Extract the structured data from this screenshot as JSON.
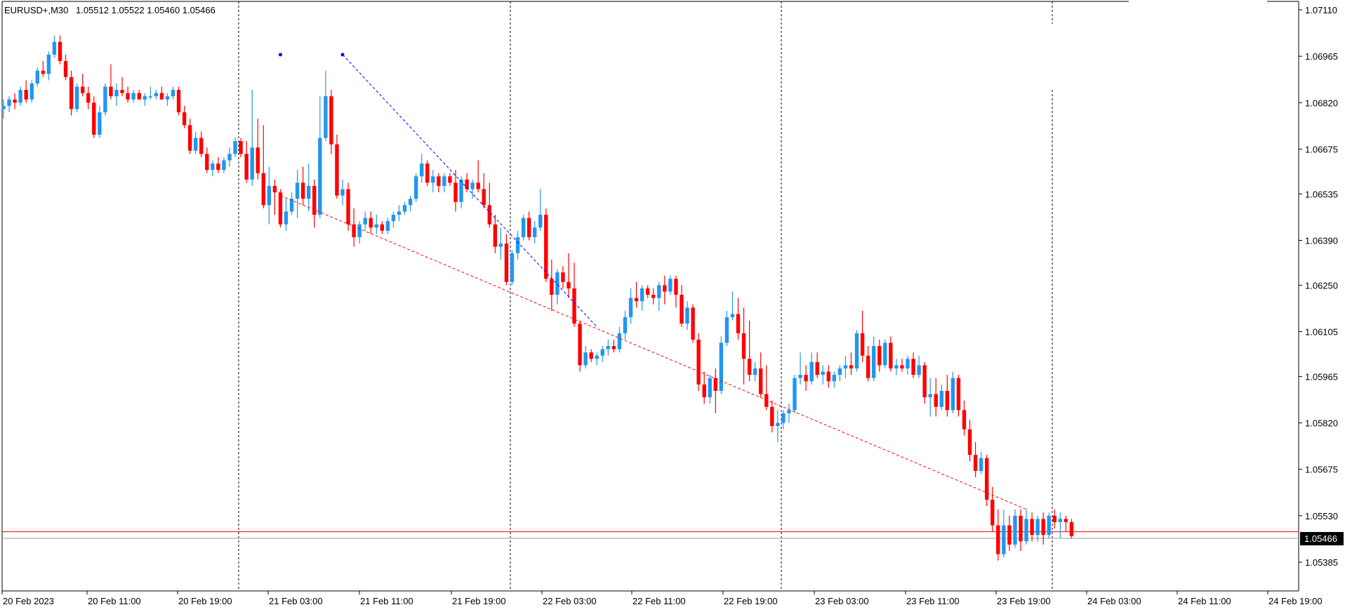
{
  "header": {
    "symbol": "EURUSD+,M30",
    "ohlc": "1.05512 1.05522 1.05460 1.05466"
  },
  "chart_data": {
    "type": "candlestick",
    "symbol": "EURUSD+",
    "timeframe": "M30",
    "ylim": [
      1.0533,
      1.0714
    ],
    "y_ticks": [
      "1.07110",
      "1.06965",
      "1.06820",
      "1.06675",
      "1.06535",
      "1.06390",
      "1.06250",
      "1.06105",
      "1.05965",
      "1.05820",
      "1.05675",
      "1.05530",
      "1.05385"
    ],
    "x_ticks": [
      "20 Feb 2023",
      "20 Feb 11:00",
      "20 Feb 19:00",
      "21 Feb 03:00",
      "21 Feb 11:00",
      "21 Feb 19:00",
      "22 Feb 03:00",
      "22 Feb 11:00",
      "22 Feb 19:00",
      "23 Feb 03:00",
      "23 Feb 11:00",
      "23 Feb 19:00",
      "24 Feb 03:00",
      "24 Feb 11:00",
      "24 Feb 19:00"
    ],
    "current_price": "1.05466",
    "bid_line": 1.05466,
    "ask_line": 1.0548,
    "day_separators": [
      "21 Feb 2023",
      "22 Feb 2023",
      "23 Feb 2023",
      "24 Feb 2023"
    ],
    "bull_color": "#2196F3",
    "bear_color": "#FF0000",
    "trendlines": [
      {
        "color": "#0000FF",
        "from": [
          1.0697
        ],
        "to": [
          1.0612
        ]
      },
      {
        "color": "#FF0000",
        "from": [
          1.0653
        ],
        "to": [
          1.0555
        ]
      }
    ],
    "candles": [
      [
        1.068,
        1.0683,
        1.0677,
        1.0681
      ],
      [
        1.0681,
        1.0684,
        1.0679,
        1.0683
      ],
      [
        1.0683,
        1.0685,
        1.068,
        1.0682
      ],
      [
        1.0682,
        1.0687,
        1.0681,
        1.0686
      ],
      [
        1.0686,
        1.0689,
        1.0682,
        1.0683
      ],
      [
        1.0683,
        1.0689,
        1.0682,
        1.0688
      ],
      [
        1.0688,
        1.0693,
        1.0687,
        1.0692
      ],
      [
        1.0692,
        1.0695,
        1.069,
        1.0691
      ],
      [
        1.0691,
        1.0698,
        1.0689,
        1.0697
      ],
      [
        1.0697,
        1.0703,
        1.0696,
        1.0701
      ],
      [
        1.0701,
        1.0703,
        1.0694,
        1.0695
      ],
      [
        1.0695,
        1.0697,
        1.0689,
        1.069
      ],
      [
        1.069,
        1.0692,
        1.0678,
        1.068
      ],
      [
        1.068,
        1.0688,
        1.0679,
        1.0687
      ],
      [
        1.0687,
        1.0691,
        1.0684,
        1.0685
      ],
      [
        1.0685,
        1.0687,
        1.068,
        1.0682
      ],
      [
        1.0682,
        1.0684,
        1.0671,
        1.0672
      ],
      [
        1.0672,
        1.0681,
        1.0671,
        1.0679
      ],
      [
        1.0679,
        1.0688,
        1.0678,
        1.0687
      ],
      [
        1.0687,
        1.0694,
        1.0683,
        1.0684
      ],
      [
        1.0684,
        1.0688,
        1.0681,
        1.0686
      ],
      [
        1.0686,
        1.069,
        1.0684,
        1.0685
      ],
      [
        1.0685,
        1.0687,
        1.0682,
        1.0683
      ],
      [
        1.0683,
        1.0686,
        1.0682,
        1.0685
      ],
      [
        1.0685,
        1.0686,
        1.0683,
        1.0683
      ],
      [
        1.0683,
        1.0685,
        1.0681,
        1.0684
      ],
      [
        1.0684,
        1.0687,
        1.0683,
        1.0684
      ],
      [
        1.0684,
        1.0686,
        1.0683,
        1.0685
      ],
      [
        1.0685,
        1.0687,
        1.0683,
        1.0683
      ],
      [
        1.0683,
        1.0685,
        1.0681,
        1.0684
      ],
      [
        1.0684,
        1.0687,
        1.0683,
        1.0686
      ],
      [
        1.0686,
        1.0687,
        1.0678,
        1.0679
      ],
      [
        1.0679,
        1.0681,
        1.0674,
        1.0675
      ],
      [
        1.0675,
        1.0677,
        1.0666,
        1.0667
      ],
      [
        1.0667,
        1.0673,
        1.0666,
        1.0671
      ],
      [
        1.0671,
        1.0673,
        1.0665,
        1.0666
      ],
      [
        1.0666,
        1.0668,
        1.066,
        1.0661
      ],
      [
        1.0661,
        1.0664,
        1.0659,
        1.0663
      ],
      [
        1.0663,
        1.0665,
        1.066,
        1.0661
      ],
      [
        1.0661,
        1.0665,
        1.066,
        1.0664
      ],
      [
        1.0664,
        1.0668,
        1.0662,
        1.0666
      ],
      [
        1.0666,
        1.0671,
        1.0665,
        1.067
      ],
      [
        1.067,
        1.0671,
        1.0665,
        1.0666
      ],
      [
        1.0666,
        1.067,
        1.0657,
        1.0658
      ],
      [
        1.0658,
        1.0686,
        1.0656,
        1.0668
      ],
      [
        1.0668,
        1.0677,
        1.0658,
        1.066
      ],
      [
        1.066,
        1.0675,
        1.0649,
        1.065
      ],
      [
        1.065,
        1.0662,
        1.0644,
        1.0656
      ],
      [
        1.0656,
        1.0658,
        1.0647,
        1.0654
      ],
      [
        1.0654,
        1.0655,
        1.0643,
        1.0644
      ],
      [
        1.0644,
        1.0652,
        1.0642,
        1.0648
      ],
      [
        1.0648,
        1.0654,
        1.0647,
        1.0652
      ],
      [
        1.0652,
        1.0661,
        1.0646,
        1.0657
      ],
      [
        1.0657,
        1.0662,
        1.065,
        1.0652
      ],
      [
        1.0652,
        1.0663,
        1.0648,
        1.0656
      ],
      [
        1.0656,
        1.0658,
        1.0643,
        1.0647
      ],
      [
        1.0647,
        1.0684,
        1.0646,
        1.0671
      ],
      [
        1.0671,
        1.0692,
        1.067,
        1.0684
      ],
      [
        1.0684,
        1.0686,
        1.0666,
        1.0669
      ],
      [
        1.0669,
        1.0672,
        1.0652,
        1.0653
      ],
      [
        1.0653,
        1.0658,
        1.065,
        1.0655
      ],
      [
        1.0655,
        1.0657,
        1.0642,
        1.0644
      ],
      [
        1.0644,
        1.0649,
        1.0637,
        1.064
      ],
      [
        1.064,
        1.0645,
        1.0638,
        1.0644
      ],
      [
        1.0644,
        1.0648,
        1.0642,
        1.0646
      ],
      [
        1.0646,
        1.0648,
        1.0641,
        1.0643
      ],
      [
        1.0643,
        1.0647,
        1.0641,
        1.0644
      ],
      [
        1.0644,
        1.0645,
        1.0641,
        1.0642
      ],
      [
        1.0642,
        1.0646,
        1.0641,
        1.0645
      ],
      [
        1.0645,
        1.0648,
        1.0643,
        1.0647
      ],
      [
        1.0647,
        1.065,
        1.0645,
        1.0648
      ],
      [
        1.0648,
        1.0651,
        1.0647,
        1.065
      ],
      [
        1.065,
        1.0653,
        1.0648,
        1.0652
      ],
      [
        1.0652,
        1.066,
        1.0651,
        1.0659
      ],
      [
        1.0659,
        1.0666,
        1.0657,
        1.0663
      ],
      [
        1.0663,
        1.0664,
        1.0656,
        1.0657
      ],
      [
        1.0657,
        1.0661,
        1.0654,
        1.0659
      ],
      [
        1.0659,
        1.066,
        1.0654,
        1.0656
      ],
      [
        1.0656,
        1.066,
        1.0654,
        1.0659
      ],
      [
        1.0659,
        1.066,
        1.0656,
        1.0657
      ],
      [
        1.0657,
        1.0661,
        1.0648,
        1.0651
      ],
      [
        1.0651,
        1.0659,
        1.0649,
        1.0658
      ],
      [
        1.0658,
        1.066,
        1.0654,
        1.0655
      ],
      [
        1.0655,
        1.0658,
        1.0652,
        1.0657
      ],
      [
        1.0657,
        1.0664,
        1.0654,
        1.0655
      ],
      [
        1.0655,
        1.066,
        1.0649,
        1.065
      ],
      [
        1.065,
        1.0657,
        1.0643,
        1.0644
      ],
      [
        1.0644,
        1.0647,
        1.0635,
        1.0637
      ],
      [
        1.0637,
        1.0643,
        1.0633,
        1.0638
      ],
      [
        1.0638,
        1.0641,
        1.0625,
        1.0626
      ],
      [
        1.0626,
        1.0636,
        1.0625,
        1.0635
      ],
      [
        1.0635,
        1.0642,
        1.0633,
        1.064
      ],
      [
        1.064,
        1.0647,
        1.0639,
        1.0646
      ],
      [
        1.0646,
        1.0648,
        1.0639,
        1.064
      ],
      [
        1.064,
        1.0645,
        1.0638,
        1.0643
      ],
      [
        1.0643,
        1.0655,
        1.0642,
        1.0647
      ],
      [
        1.0647,
        1.0649,
        1.0626,
        1.0627
      ],
      [
        1.0627,
        1.0633,
        1.0617,
        1.0622
      ],
      [
        1.0622,
        1.063,
        1.0619,
        1.0629
      ],
      [
        1.0629,
        1.0631,
        1.0624,
        1.0626
      ],
      [
        1.0626,
        1.0635,
        1.0621,
        1.0624
      ],
      [
        1.0624,
        1.0632,
        1.0612,
        1.0613
      ],
      [
        1.0613,
        1.0614,
        1.0598,
        1.06
      ],
      [
        1.06,
        1.0606,
        1.0599,
        1.0604
      ],
      [
        1.0604,
        1.0605,
        1.0601,
        1.0602
      ],
      [
        1.0602,
        1.0604,
        1.06,
        1.0603
      ],
      [
        1.0603,
        1.0606,
        1.0601,
        1.0605
      ],
      [
        1.0605,
        1.0608,
        1.0603,
        1.0606
      ],
      [
        1.0606,
        1.0608,
        1.0604,
        1.0605
      ],
      [
        1.0605,
        1.0612,
        1.0604,
        1.061
      ],
      [
        1.061,
        1.0617,
        1.0608,
        1.0615
      ],
      [
        1.0615,
        1.0624,
        1.0613,
        1.0621
      ],
      [
        1.0621,
        1.0626,
        1.0618,
        1.062
      ],
      [
        1.062,
        1.0625,
        1.0617,
        1.0624
      ],
      [
        1.0624,
        1.0625,
        1.0621,
        1.0622
      ],
      [
        1.0622,
        1.0624,
        1.0619,
        1.0621
      ],
      [
        1.0621,
        1.0626,
        1.0617,
        1.0625
      ],
      [
        1.0625,
        1.0628,
        1.0619,
        1.0623
      ],
      [
        1.0623,
        1.0628,
        1.0622,
        1.0627
      ],
      [
        1.0627,
        1.0628,
        1.0618,
        1.0622
      ],
      [
        1.0622,
        1.0625,
        1.0612,
        1.0613
      ],
      [
        1.0613,
        1.062,
        1.0611,
        1.0618
      ],
      [
        1.0618,
        1.0619,
        1.0607,
        1.0608
      ],
      [
        1.0608,
        1.061,
        1.0592,
        1.0594
      ],
      [
        1.0594,
        1.0598,
        1.0588,
        1.059
      ],
      [
        1.059,
        1.0597,
        1.0588,
        1.0596
      ],
      [
        1.0596,
        1.0599,
        1.0585,
        1.0592
      ],
      [
        1.0592,
        1.0609,
        1.0591,
        1.0607
      ],
      [
        1.0607,
        1.0617,
        1.0606,
        1.0615
      ],
      [
        1.0615,
        1.0623,
        1.0614,
        1.0616
      ],
      [
        1.0616,
        1.0621,
        1.0608,
        1.061
      ],
      [
        1.061,
        1.0618,
        1.0594,
        1.0602
      ],
      [
        1.0602,
        1.0614,
        1.0595,
        1.0597
      ],
      [
        1.0597,
        1.0601,
        1.0595,
        1.0599
      ],
      [
        1.0599,
        1.0604,
        1.059,
        1.0591
      ],
      [
        1.0591,
        1.06,
        1.0586,
        1.0587
      ],
      [
        1.0587,
        1.0589,
        1.0579,
        1.0581
      ],
      [
        1.0581,
        1.0586,
        1.0576,
        1.0582
      ],
      [
        1.0582,
        1.0586,
        1.058,
        1.0585
      ],
      [
        1.0585,
        1.0588,
        1.0582,
        1.0586
      ],
      [
        1.0586,
        1.0597,
        1.0585,
        1.0596
      ],
      [
        1.0596,
        1.0604,
        1.0594,
        1.0597
      ],
      [
        1.0597,
        1.06,
        1.0592,
        1.0595
      ],
      [
        1.0595,
        1.0604,
        1.0594,
        1.0601
      ],
      [
        1.0601,
        1.0604,
        1.0596,
        1.0597
      ],
      [
        1.0597,
        1.06,
        1.0594,
        1.0598
      ],
      [
        1.0598,
        1.06,
        1.0593,
        1.0595
      ],
      [
        1.0595,
        1.0598,
        1.0593,
        1.0597
      ],
      [
        1.0597,
        1.06,
        1.0595,
        1.0599
      ],
      [
        1.0599,
        1.0603,
        1.0596,
        1.06
      ],
      [
        1.06,
        1.0604,
        1.0597,
        1.0599
      ],
      [
        1.0599,
        1.0611,
        1.0598,
        1.061
      ],
      [
        1.061,
        1.0617,
        1.0601,
        1.0603
      ],
      [
        1.0603,
        1.0606,
        1.0595,
        1.0596
      ],
      [
        1.0596,
        1.0609,
        1.0595,
        1.0606
      ],
      [
        1.0606,
        1.0608,
        1.0598,
        1.06
      ],
      [
        1.06,
        1.0608,
        1.0599,
        1.0607
      ],
      [
        1.0607,
        1.0609,
        1.0598,
        1.0599
      ],
      [
        1.0599,
        1.0602,
        1.0597,
        1.06
      ],
      [
        1.06,
        1.0602,
        1.0598,
        1.0599
      ],
      [
        1.0599,
        1.0603,
        1.0597,
        1.0602
      ],
      [
        1.0602,
        1.0604,
        1.0596,
        1.0597
      ],
      [
        1.0597,
        1.0603,
        1.0596,
        1.06
      ],
      [
        1.06,
        1.0601,
        1.0588,
        1.059
      ],
      [
        1.059,
        1.0596,
        1.0584,
        1.0591
      ],
      [
        1.0591,
        1.0596,
        1.0584,
        1.0587
      ],
      [
        1.0587,
        1.0594,
        1.0586,
        1.0592
      ],
      [
        1.0592,
        1.0597,
        1.0584,
        1.0586
      ],
      [
        1.0586,
        1.0598,
        1.0585,
        1.0596
      ],
      [
        1.0596,
        1.0597,
        1.0584,
        1.0586
      ],
      [
        1.0586,
        1.0589,
        1.0578,
        1.058
      ],
      [
        1.058,
        1.0583,
        1.057,
        1.0572
      ],
      [
        1.0572,
        1.0576,
        1.0565,
        1.0567
      ],
      [
        1.0567,
        1.0573,
        1.0566,
        1.0571
      ],
      [
        1.0571,
        1.0572,
        1.0556,
        1.0558
      ],
      [
        1.0558,
        1.0562,
        1.0548,
        1.055
      ],
      [
        1.055,
        1.0555,
        1.0539,
        1.0541
      ],
      [
        1.0541,
        1.0555,
        1.054,
        1.055
      ],
      [
        1.055,
        1.0553,
        1.0542,
        1.0544
      ],
      [
        1.0544,
        1.0555,
        1.0543,
        1.0553
      ],
      [
        1.0553,
        1.0555,
        1.0542,
        1.0545
      ],
      [
        1.0545,
        1.0555,
        1.0544,
        1.0552
      ],
      [
        1.0552,
        1.0554,
        1.0545,
        1.0547
      ],
      [
        1.0547,
        1.0553,
        1.0545,
        1.0552
      ],
      [
        1.0552,
        1.0554,
        1.0544,
        1.0547
      ],
      [
        1.0547,
        1.0554,
        1.0546,
        1.0553
      ],
      [
        1.0553,
        1.0555,
        1.0549,
        1.0551
      ],
      [
        1.0551,
        1.0554,
        1.0546,
        1.0552
      ],
      [
        1.0552,
        1.0553,
        1.0548,
        1.0551
      ],
      [
        1.0551,
        1.0552,
        1.0546,
        1.05466
      ]
    ]
  }
}
